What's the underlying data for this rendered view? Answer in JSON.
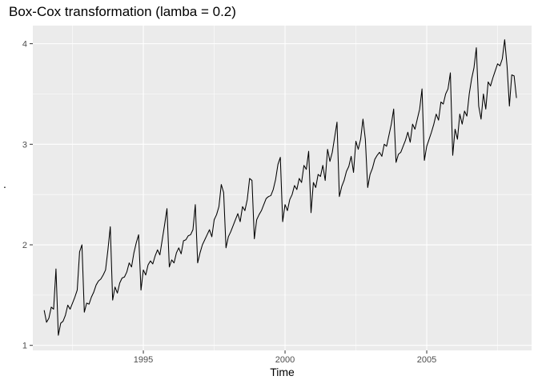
{
  "chart_data": {
    "type": "line",
    "title": "Box-Cox transformation (lamba = 0.2)",
    "xlabel": "Time",
    "ylabel": "",
    "ylabel_mark": ".",
    "xlim": [
      1991.1,
      2008.7
    ],
    "ylim": [
      0.95,
      4.18
    ],
    "x_ticks": [
      1995,
      2000,
      2005
    ],
    "x_tick_labels": [
      "1995",
      "2000",
      "2005"
    ],
    "y_ticks": [
      1,
      2,
      3,
      4
    ],
    "y_tick_labels": [
      "1",
      "2",
      "3",
      "4"
    ],
    "grid": true,
    "background": "#ebebeb",
    "line_color": "#000000",
    "frequency": 12,
    "start": "1991-07",
    "series": [
      {
        "values": [
          1.35,
          1.23,
          1.27,
          1.38,
          1.36,
          1.76,
          1.1,
          1.22,
          1.24,
          1.3,
          1.4,
          1.36,
          1.42,
          1.48,
          1.55,
          1.93,
          2.0,
          1.33,
          1.42,
          1.41,
          1.48,
          1.53,
          1.6,
          1.64,
          1.66,
          1.7,
          1.75,
          1.95,
          2.18,
          1.45,
          1.58,
          1.52,
          1.62,
          1.67,
          1.68,
          1.73,
          1.82,
          1.78,
          1.92,
          2.02,
          2.1,
          1.55,
          1.75,
          1.7,
          1.8,
          1.84,
          1.81,
          1.89,
          1.95,
          1.9,
          2.05,
          2.2,
          2.36,
          1.78,
          1.85,
          1.82,
          1.92,
          1.97,
          1.91,
          2.04,
          2.05,
          2.09,
          2.1,
          2.15,
          2.4,
          1.82,
          1.92,
          2.0,
          2.05,
          2.1,
          2.15,
          2.08,
          2.25,
          2.3,
          2.38,
          2.6,
          2.52,
          1.97,
          2.08,
          2.13,
          2.19,
          2.25,
          2.31,
          2.23,
          2.38,
          2.34,
          2.45,
          2.66,
          2.64,
          2.06,
          2.25,
          2.3,
          2.34,
          2.4,
          2.46,
          2.48,
          2.49,
          2.55,
          2.65,
          2.8,
          2.87,
          2.23,
          2.4,
          2.34,
          2.45,
          2.5,
          2.59,
          2.55,
          2.66,
          2.62,
          2.79,
          2.75,
          2.93,
          2.32,
          2.62,
          2.57,
          2.7,
          2.68,
          2.79,
          2.64,
          2.95,
          2.83,
          2.92,
          3.07,
          3.22,
          2.48,
          2.58,
          2.64,
          2.73,
          2.78,
          2.88,
          2.72,
          3.03,
          2.95,
          3.05,
          3.25,
          3.05,
          2.57,
          2.7,
          2.76,
          2.85,
          2.89,
          2.92,
          2.88,
          3.0,
          2.98,
          3.09,
          3.2,
          3.35,
          2.82,
          2.9,
          2.92,
          2.98,
          3.04,
          3.12,
          3.02,
          3.2,
          3.15,
          3.25,
          3.35,
          3.55,
          2.84,
          2.98,
          3.05,
          3.12,
          3.2,
          3.3,
          3.24,
          3.42,
          3.4,
          3.5,
          3.55,
          3.71,
          2.89,
          3.15,
          3.05,
          3.3,
          3.2,
          3.33,
          3.28,
          3.5,
          3.65,
          3.76,
          3.96,
          3.38,
          3.25,
          3.5,
          3.35,
          3.62,
          3.58,
          3.66,
          3.73,
          3.8,
          3.78,
          3.85,
          4.04,
          3.78,
          3.38,
          3.69,
          3.68,
          3.46
        ]
      }
    ]
  }
}
